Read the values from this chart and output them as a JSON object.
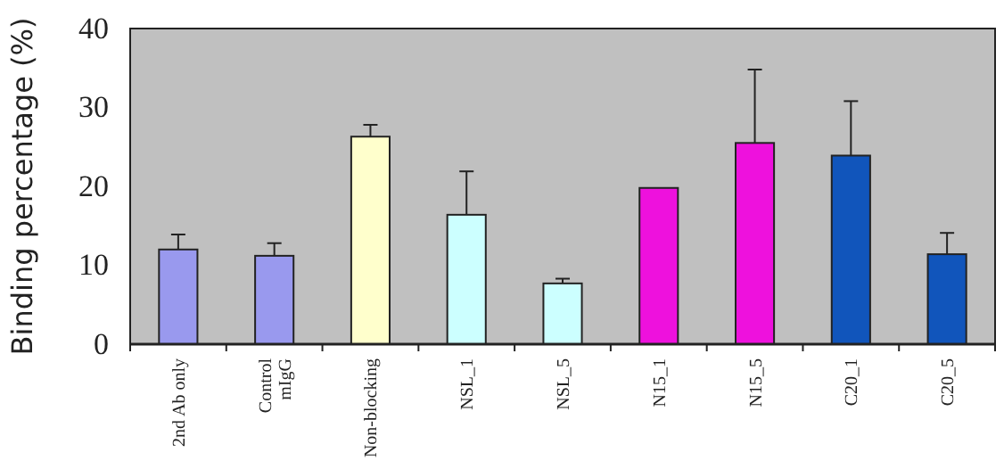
{
  "chart_data": {
    "type": "bar",
    "ylabel": "Binding percentage (%)",
    "categories": [
      "2nd Ab only",
      "Control\nmIgG",
      "Non-blocking",
      "NSL_1",
      "NSL_5",
      "N15_1",
      "N15_5",
      "C20_1",
      "C20_5"
    ],
    "values": [
      12.0,
      11.2,
      26.3,
      16.4,
      7.7,
      19.8,
      25.5,
      23.9,
      11.4
    ],
    "colors": [
      "#9999ee",
      "#9999ee",
      "#ffffcc",
      "#ccffff",
      "#ccffff",
      "#ee11dd",
      "#ee11dd",
      "#1155bb",
      "#1155bb"
    ],
    "errors": [
      [
        12.0,
        13.9
      ],
      [
        11.2,
        12.8
      ],
      [
        26.3,
        27.8
      ],
      [
        16.4,
        21.9
      ],
      [
        7.7,
        8.3
      ],
      null,
      [
        25.5,
        34.8
      ],
      [
        23.9,
        30.8
      ],
      [
        11.4,
        14.1
      ]
    ],
    "ylim": [
      0,
      40
    ],
    "yticks": [
      0,
      10,
      20,
      30,
      40
    ],
    "grid": false
  }
}
